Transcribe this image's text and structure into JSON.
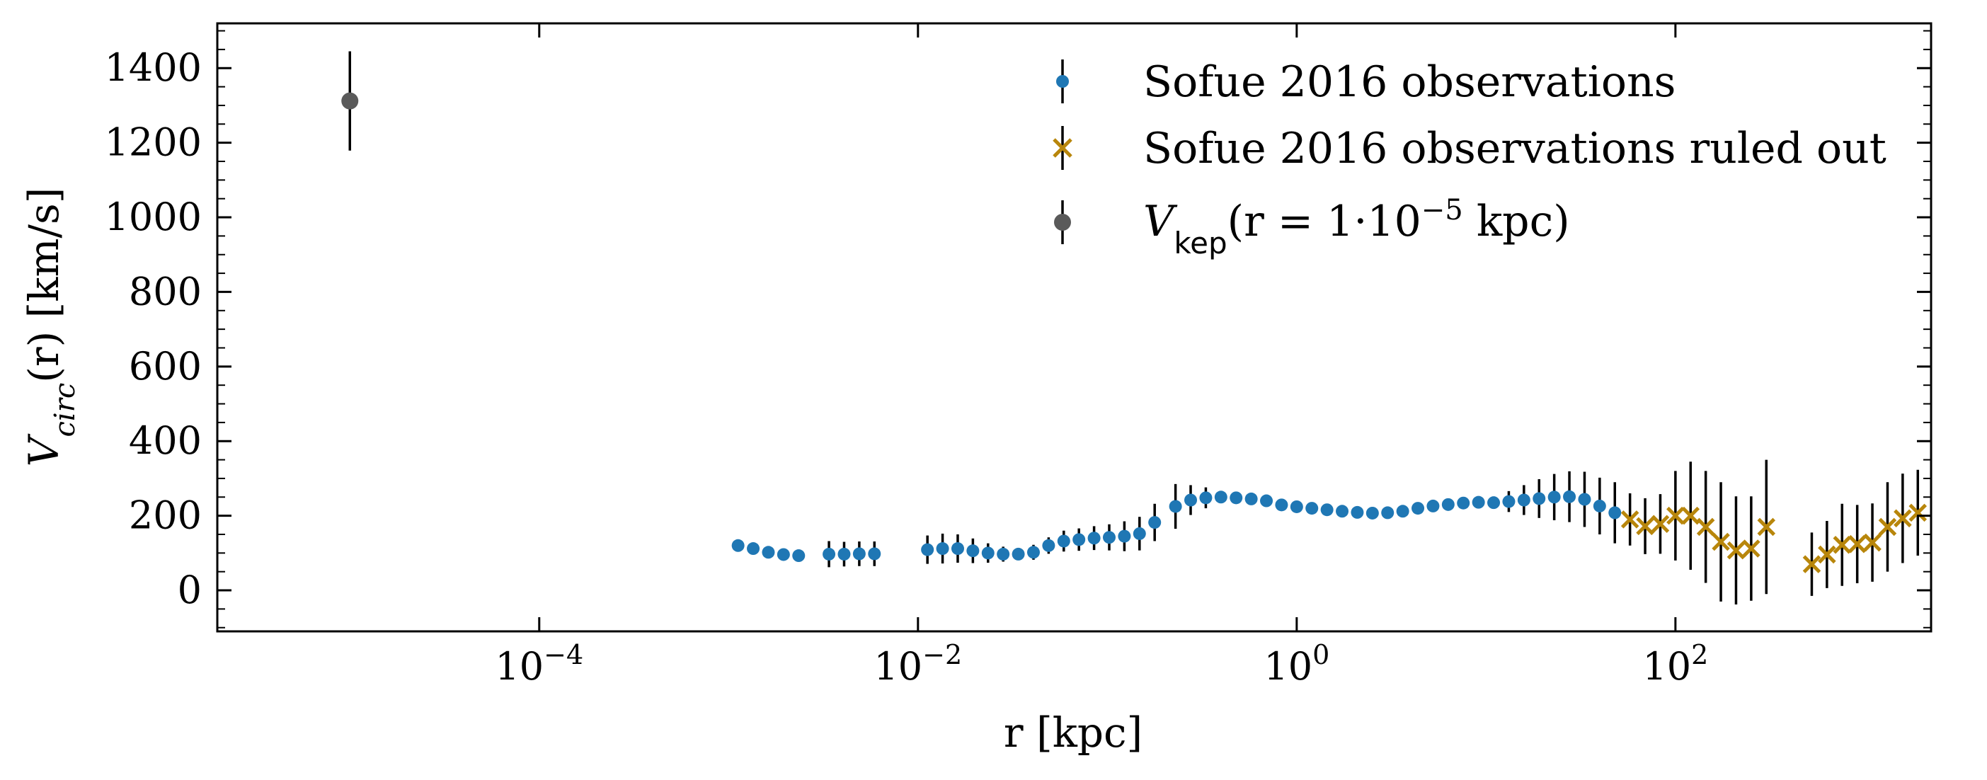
{
  "chart_data": {
    "type": "scatter",
    "xscale": "log",
    "xlim_log10": [
      -5.7,
      3.35
    ],
    "ylim": [
      -110,
      1520
    ],
    "xlabel": "r [kpc]",
    "ylabel": {
      "main": "V",
      "sub": "circ",
      "tail": "(r) [km/s]"
    },
    "x_ticks": [
      {
        "exp": -4,
        "base": "10",
        "sup": "−4"
      },
      {
        "exp": -2,
        "base": "10",
        "sup": "−2"
      },
      {
        "exp": 0,
        "base": "10",
        "sup": "0"
      },
      {
        "exp": 2,
        "base": "10",
        "sup": "2"
      }
    ],
    "y_ticks": [
      0,
      200,
      400,
      600,
      800,
      1000,
      1200,
      1400
    ],
    "y_tick_labels": [
      "0",
      "200",
      "400",
      "600",
      "800",
      "1000",
      "1200",
      "1400"
    ],
    "colors": {
      "observed": "#1f77b4",
      "ruled_out": "#b8860b",
      "kepler": "#5a5a5a",
      "errorbar": "#000000"
    },
    "legend": {
      "position": "top-right",
      "observed": "Sofue 2016 observations",
      "ruled_out": "Sofue 2016 observations ruled out",
      "kepler": {
        "main": "V",
        "sub": "kep",
        "mid": "(r = 1·10",
        "sup": "−5",
        "tail": " kpc)"
      }
    },
    "series": [
      {
        "name": "Sofue 2016 observations",
        "marker": "circle",
        "points": [
          {
            "lx": -2.95,
            "y": 120,
            "e": 0
          },
          {
            "lx": -2.87,
            "y": 112,
            "e": 0
          },
          {
            "lx": -2.79,
            "y": 102,
            "e": 0
          },
          {
            "lx": -2.71,
            "y": 96,
            "e": 0
          },
          {
            "lx": -2.63,
            "y": 93,
            "e": 0
          },
          {
            "lx": -2.47,
            "y": 97,
            "e": 35
          },
          {
            "lx": -2.39,
            "y": 97,
            "e": 33
          },
          {
            "lx": -2.31,
            "y": 98,
            "e": 33
          },
          {
            "lx": -2.23,
            "y": 98,
            "e": 33
          },
          {
            "lx": -1.95,
            "y": 109,
            "e": 38
          },
          {
            "lx": -1.87,
            "y": 112,
            "e": 40
          },
          {
            "lx": -1.79,
            "y": 112,
            "e": 38
          },
          {
            "lx": -1.71,
            "y": 106,
            "e": 33
          },
          {
            "lx": -1.63,
            "y": 100,
            "e": 26
          },
          {
            "lx": -1.55,
            "y": 97,
            "e": 20
          },
          {
            "lx": -1.47,
            "y": 97,
            "e": 15
          },
          {
            "lx": -1.39,
            "y": 102,
            "e": 20
          },
          {
            "lx": -1.31,
            "y": 120,
            "e": 22
          },
          {
            "lx": -1.23,
            "y": 132,
            "e": 28
          },
          {
            "lx": -1.15,
            "y": 136,
            "e": 30
          },
          {
            "lx": -1.07,
            "y": 140,
            "e": 32
          },
          {
            "lx": -0.99,
            "y": 142,
            "e": 35
          },
          {
            "lx": -0.91,
            "y": 145,
            "e": 40
          },
          {
            "lx": -0.83,
            "y": 152,
            "e": 45
          },
          {
            "lx": -0.75,
            "y": 182,
            "e": 50
          },
          {
            "lx": -0.64,
            "y": 225,
            "e": 60
          },
          {
            "lx": -0.56,
            "y": 242,
            "e": 40
          },
          {
            "lx": -0.48,
            "y": 248,
            "e": 28
          },
          {
            "lx": -0.4,
            "y": 250,
            "e": 12
          },
          {
            "lx": -0.32,
            "y": 248,
            "e": 8
          },
          {
            "lx": -0.24,
            "y": 245,
            "e": 0
          },
          {
            "lx": -0.16,
            "y": 240,
            "e": 0
          },
          {
            "lx": -0.08,
            "y": 229,
            "e": 0
          },
          {
            "lx": 0.0,
            "y": 224,
            "e": 0
          },
          {
            "lx": 0.08,
            "y": 220,
            "e": 0
          },
          {
            "lx": 0.16,
            "y": 216,
            "e": 0
          },
          {
            "lx": 0.24,
            "y": 212,
            "e": 0
          },
          {
            "lx": 0.32,
            "y": 209,
            "e": 0
          },
          {
            "lx": 0.4,
            "y": 207,
            "e": 0
          },
          {
            "lx": 0.48,
            "y": 208,
            "e": 0
          },
          {
            "lx": 0.56,
            "y": 212,
            "e": 0
          },
          {
            "lx": 0.64,
            "y": 220,
            "e": 0
          },
          {
            "lx": 0.72,
            "y": 226,
            "e": 0
          },
          {
            "lx": 0.8,
            "y": 230,
            "e": 0
          },
          {
            "lx": 0.88,
            "y": 234,
            "e": 0
          },
          {
            "lx": 0.96,
            "y": 236,
            "e": 8
          },
          {
            "lx": 1.04,
            "y": 235,
            "e": 15
          },
          {
            "lx": 1.12,
            "y": 238,
            "e": 28
          },
          {
            "lx": 1.2,
            "y": 242,
            "e": 40
          },
          {
            "lx": 1.28,
            "y": 246,
            "e": 52
          },
          {
            "lx": 1.36,
            "y": 250,
            "e": 62
          },
          {
            "lx": 1.44,
            "y": 251,
            "e": 68
          },
          {
            "lx": 1.52,
            "y": 244,
            "e": 74
          },
          {
            "lx": 1.6,
            "y": 226,
            "e": 76
          },
          {
            "lx": 1.68,
            "y": 208,
            "e": 82
          }
        ]
      },
      {
        "name": "Sofue 2016 observations ruled out",
        "marker": "x",
        "points": [
          {
            "lx": 1.76,
            "y": 190,
            "e": 70
          },
          {
            "lx": 1.84,
            "y": 172,
            "e": 75
          },
          {
            "lx": 1.92,
            "y": 178,
            "e": 80
          },
          {
            "lx": 2.0,
            "y": 200,
            "e": 120
          },
          {
            "lx": 2.08,
            "y": 200,
            "e": 145
          },
          {
            "lx": 2.16,
            "y": 170,
            "e": 150
          },
          {
            "lx": 2.24,
            "y": 130,
            "e": 160
          },
          {
            "lx": 2.32,
            "y": 107,
            "e": 145
          },
          {
            "lx": 2.4,
            "y": 112,
            "e": 140
          },
          {
            "lx": 2.48,
            "y": 170,
            "e": 180
          },
          {
            "lx": 2.72,
            "y": 70,
            "e": 85
          },
          {
            "lx": 2.8,
            "y": 96,
            "e": 90
          },
          {
            "lx": 2.88,
            "y": 122,
            "e": 110
          },
          {
            "lx": 2.96,
            "y": 124,
            "e": 105
          },
          {
            "lx": 3.04,
            "y": 128,
            "e": 105
          },
          {
            "lx": 3.12,
            "y": 170,
            "e": 120
          },
          {
            "lx": 3.2,
            "y": 193,
            "e": 120
          },
          {
            "lx": 3.28,
            "y": 208,
            "e": 115
          }
        ]
      },
      {
        "name": "V_kep(r = 1·10^-5 kpc)",
        "marker": "circle",
        "points": [
          {
            "lx": -5.0,
            "y": 1312,
            "e": 133
          }
        ]
      }
    ]
  }
}
